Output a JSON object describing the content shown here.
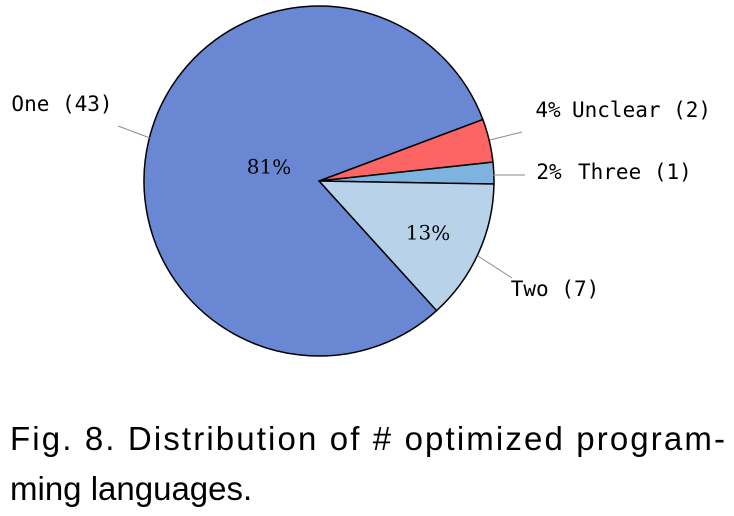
{
  "chart_data": {
    "type": "pie",
    "categories": [
      "Unclear (2)",
      "Three (1)",
      "Two (7)",
      "One (43)"
    ],
    "values": [
      4,
      2,
      13,
      81
    ],
    "colors": [
      "#fd6565",
      "#7fb3df",
      "#b8d2ea",
      "#6a87d4"
    ],
    "caption": [
      "Fig. 8.  Distribution of # optimized program-",
      "ming languages."
    ]
  }
}
